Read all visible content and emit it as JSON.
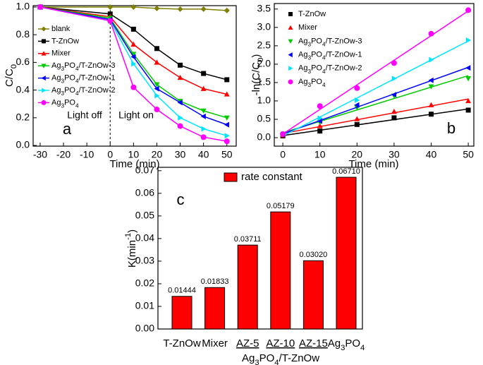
{
  "chart_data": [
    {
      "type": "line",
      "panel_label": "a",
      "annotations": [
        "Light off",
        "Light on"
      ],
      "xlabel": "Time (min)",
      "ylabel": "C/C0",
      "x": [
        -30,
        0,
        10,
        20,
        30,
        40,
        50
      ],
      "xlim": [
        -33,
        54
      ],
      "xticks": [
        -30,
        -20,
        -10,
        0,
        10,
        20,
        30,
        40,
        50
      ],
      "ylim": [
        -0.005,
        1.01
      ],
      "yticks": [
        {
          "value": 0,
          "label": "0.0"
        },
        0.2,
        0.4,
        0.6,
        0.8,
        {
          "value": 1,
          "label": "1.0"
        }
      ],
      "legend": "upper left",
      "series": [
        {
          "name": "blank",
          "color": "#808000",
          "marker": "diamond",
          "values": [
            1.0,
            1.0,
            1.0,
            0.99,
            0.985,
            0.985,
            0.975
          ]
        },
        {
          "name": "T-ZnOw",
          "color": "#000000",
          "marker": "square",
          "values": [
            1.0,
            0.95,
            0.84,
            0.7,
            0.58,
            0.52,
            0.475
          ]
        },
        {
          "name": "Mixer",
          "color": "#ff0000",
          "marker": "triangle-up",
          "values": [
            1.0,
            0.93,
            0.73,
            0.6,
            0.49,
            0.41,
            0.37
          ]
        },
        {
          "name": "Ag3PO4/T-ZnOw-3",
          "color": "#00cc00",
          "marker": "triangle-down",
          "values": [
            1.0,
            0.92,
            0.66,
            0.44,
            0.32,
            0.25,
            0.2
          ]
        },
        {
          "name": "Ag3PO4/T-ZnOw-1",
          "color": "#0000ff",
          "marker": "triangle-left",
          "values": [
            1.0,
            0.91,
            0.64,
            0.41,
            0.31,
            0.21,
            0.15
          ]
        },
        {
          "name": "Ag3PO4/T-ZnOw-2",
          "color": "#00e5ff",
          "marker": "triangle-right",
          "values": [
            1.0,
            0.9,
            0.59,
            0.36,
            0.2,
            0.12,
            0.07
          ]
        },
        {
          "name": "Ag3PO4",
          "color": "#ff00ff",
          "marker": "circle",
          "values": [
            1.0,
            0.9,
            0.42,
            0.26,
            0.14,
            0.06,
            0.03
          ]
        }
      ]
    },
    {
      "type": "scatter",
      "panel_label": "b",
      "fit": "linear",
      "xlabel": "Time (min)",
      "ylabel": "-ln(C/C0)",
      "x": [
        0,
        10,
        20,
        30,
        40,
        50
      ],
      "xlim": [
        -2.3,
        51.5
      ],
      "xticks": [
        0,
        10,
        20,
        30,
        40,
        50
      ],
      "ylim": [
        -0.23,
        3.65
      ],
      "yticks": [
        {
          "value": 0,
          "label": "0.0"
        },
        0.5,
        {
          "value": 1,
          "label": "1.0"
        },
        1.5,
        {
          "value": 2,
          "label": "2.0"
        },
        2.5,
        {
          "value": 3,
          "label": "3.0"
        },
        3.5
      ],
      "legend": "upper left",
      "series": [
        {
          "name": "T-ZnOw",
          "color": "#000000",
          "marker": "square",
          "values": [
            0.05,
            0.18,
            0.36,
            0.54,
            0.64,
            0.75
          ]
        },
        {
          "name": "Mixer",
          "color": "#ff0000",
          "marker": "triangle-up",
          "values": [
            0.07,
            0.32,
            0.51,
            0.71,
            0.89,
            1.0
          ]
        },
        {
          "name": "Ag3PO4/T-ZnOw-3",
          "color": "#00cc00",
          "marker": "triangle-down",
          "values": [
            0.08,
            0.42,
            0.82,
            1.14,
            1.39,
            1.61
          ]
        },
        {
          "name": "Ag3PO4/T-ZnOw-1",
          "color": "#0000ff",
          "marker": "triangle-left",
          "values": [
            0.09,
            0.45,
            0.89,
            1.17,
            1.56,
            1.9
          ]
        },
        {
          "name": "Ag3PO4/T-ZnOw-2",
          "color": "#00e5ff",
          "marker": "triangle-right",
          "values": [
            0.1,
            0.53,
            1.02,
            1.61,
            2.12,
            2.65
          ]
        },
        {
          "name": "Ag3PO4",
          "color": "#ff00ff",
          "marker": "circle",
          "values": [
            0.1,
            0.86,
            1.35,
            2.03,
            2.83,
            3.47
          ]
        }
      ]
    },
    {
      "type": "bar",
      "panel_label": "c",
      "ylabel": "K(min-1)",
      "group_label": "Ag3PO4/T-ZnOw",
      "categories": [
        "T-ZnOw",
        "Mixer",
        "AZ-5",
        "AZ-10",
        "AZ-15",
        "Ag3PO4"
      ],
      "ylim": [
        0,
        0.0715
      ],
      "yticks": [
        {
          "value": 0,
          "label": "0.00"
        },
        0.01,
        0.02,
        0.03,
        0.04,
        0.05,
        0.06,
        0.07
      ],
      "legend": "upper left",
      "series": [
        {
          "name": "rate constant",
          "color": "#ff0000",
          "values": [
            0.01444,
            0.01833,
            0.03711,
            0.05179,
            0.0302,
            0.0671
          ],
          "value_labels": [
            "0.01444",
            "0.01833",
            "0.03711",
            "0.05179",
            "0.03020",
            "0.06710"
          ]
        }
      ]
    }
  ]
}
